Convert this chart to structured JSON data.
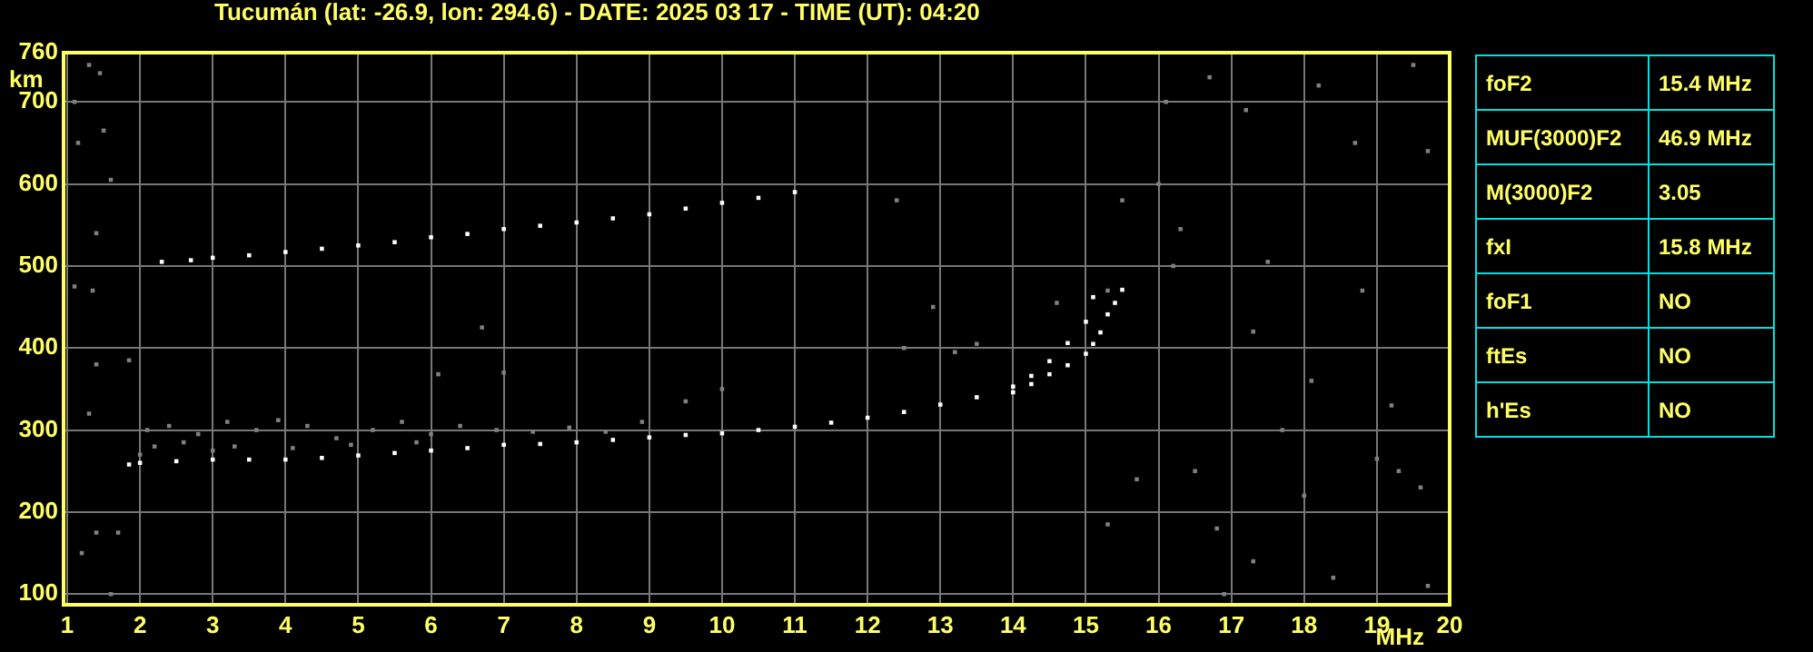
{
  "chart_data": {
    "type": "scatter",
    "title": "Tucumán (lat: -26.9, lon: 294.6) - DATE: 2025 03 17 - TIME (UT): 04:20",
    "xlabel": "MHz",
    "ylabel": "km",
    "xlim": [
      0.95,
      20
    ],
    "xticks": [
      1,
      2,
      3,
      4,
      5,
      6,
      7,
      8,
      9,
      10,
      11,
      12,
      13,
      14,
      15,
      16,
      17,
      18,
      19,
      20
    ],
    "ylim": [
      87,
      760
    ],
    "yticks": [
      100,
      200,
      300,
      400,
      500,
      600,
      700,
      760
    ],
    "grid": true,
    "marker": "square",
    "legend": false,
    "series": [
      {
        "color": "#ffffff",
        "x": [
          1.85,
          2,
          2.5,
          3,
          3.5,
          4,
          4.5,
          5,
          5.5,
          6,
          6.5,
          7,
          7.5,
          8,
          8.5,
          9,
          9.5,
          10,
          10.5,
          11,
          11.5,
          12,
          12.5,
          13,
          13.5,
          14,
          14.25,
          14.5,
          14.75,
          15,
          15.1
        ],
        "values": [
          258,
          260,
          262,
          264,
          264,
          264,
          266,
          269,
          272,
          275,
          278,
          282,
          283,
          285,
          288,
          291,
          294,
          296,
          300,
          304,
          309,
          315,
          322,
          331,
          340,
          353,
          366,
          384,
          406,
          432,
          462
        ]
      },
      {
        "color": "#ffffff",
        "x": [
          14,
          14.25,
          14.5,
          14.75,
          15,
          15.1,
          15.2,
          15.3,
          15.4,
          15.5
        ],
        "values": [
          346,
          356,
          368,
          379,
          393,
          405,
          419,
          441,
          455,
          471
        ]
      },
      {
        "color": "#ffffff",
        "x": [
          2.3,
          2.7,
          3,
          3.5,
          4,
          4.5,
          5,
          5.5,
          6,
          6.5,
          7,
          7.5,
          8,
          8.5,
          9,
          9.5,
          10,
          10.5,
          11
        ],
        "values": [
          505,
          507,
          510,
          513,
          517,
          521,
          525,
          529,
          535,
          539,
          545,
          549,
          553,
          558,
          563,
          570,
          577,
          583,
          590
        ]
      },
      {
        "color": "#808080",
        "x": [
          1.3,
          1.45,
          1.1,
          1.15,
          1.5,
          1.6,
          1.4,
          1.35,
          1.1,
          1.4,
          1.85,
          1.3,
          1.2,
          1.4,
          1.7,
          1.6,
          6.7,
          6.1,
          7.0,
          9.5,
          10,
          12.4,
          13.2,
          13.5,
          2.1,
          2.4,
          2.8,
          3.2,
          3.6,
          3.9,
          4.3,
          4.7,
          5.2,
          5.6,
          6.0,
          6.4,
          6.9,
          7.4,
          7.9,
          8.4,
          8.9,
          2.2,
          2.6,
          3.3,
          4.1,
          4.9,
          5.8,
          2.0,
          3.0,
          16.1,
          16.7,
          17.2,
          18.2,
          19.5,
          18.7,
          19.7,
          16.0,
          15.5,
          16.3,
          17.5,
          18.8,
          15.3,
          16.2,
          17.3,
          18.1,
          19.2,
          17.7,
          19.6,
          18.0,
          16.8,
          17.3,
          18.4,
          19.7,
          15.7,
          16.9,
          15.3,
          16.5,
          14.6,
          12.9,
          12.5,
          19.0,
          19.3
        ],
        "values": [
          745,
          735,
          700,
          650,
          665,
          605,
          540,
          470,
          475,
          380,
          385,
          320,
          150,
          175,
          175,
          100,
          425,
          368,
          370,
          335,
          350,
          580,
          395,
          405,
          300,
          305,
          295,
          310,
          300,
          312,
          305,
          290,
          300,
          310,
          295,
          305,
          300,
          298,
          303,
          298,
          310,
          280,
          285,
          280,
          278,
          282,
          285,
          270,
          275,
          700,
          730,
          690,
          720,
          745,
          650,
          640,
          600,
          580,
          545,
          505,
          470,
          470,
          500,
          420,
          360,
          330,
          300,
          230,
          220,
          180,
          140,
          120,
          110,
          240,
          100,
          185,
          250,
          455,
          450,
          400,
          265,
          250
        ]
      }
    ],
    "annotations": [
      "foF2",
      "15.4 MHz",
      "MUF(3000)F2",
      "46.9 MHz",
      "M(3000)F2",
      "3.05",
      "fxI",
      "15.8 MHz",
      "foF1",
      "NO",
      "ftEs",
      "NO",
      "h'Es",
      "NO"
    ]
  }
}
